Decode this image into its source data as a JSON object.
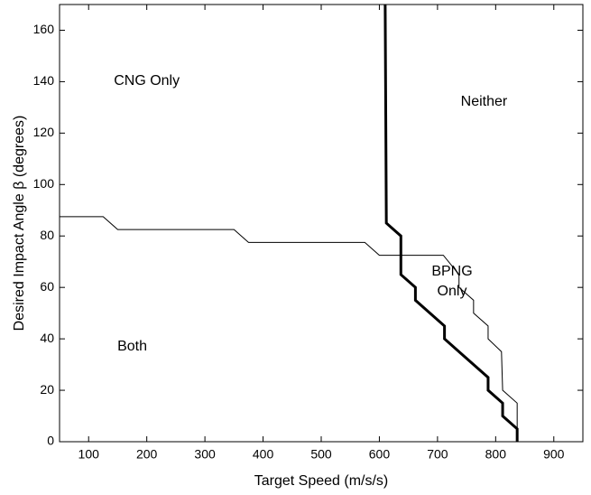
{
  "chart_data": {
    "type": "line",
    "x_label": "Target Speed (m/s/s)",
    "y_label": "Desired Impact Angle β  (degrees)",
    "xlim": [
      50,
      950
    ],
    "xticks": [
      100,
      200,
      300,
      400,
      500,
      600,
      700,
      800,
      900
    ],
    "ylim": [
      0,
      170
    ],
    "yticks": [
      0,
      20,
      40,
      60,
      80,
      100,
      120,
      140,
      160
    ],
    "grid": false,
    "series": [
      {
        "color": "#000000",
        "width": 1,
        "x": [
          50,
          125,
          150,
          350,
          375,
          575,
          600,
          710,
          737,
          737,
          762,
          762,
          787,
          787,
          810,
          812,
          837,
          837
        ],
        "values": [
          87.5,
          87.5,
          82.5,
          82.5,
          77.5,
          77.5,
          72.5,
          72.5,
          65,
          60,
          55,
          50,
          45,
          40,
          35,
          20,
          15,
          0
        ]
      },
      {
        "color": "#000000",
        "width": 3,
        "x": [
          610,
          612,
          637,
          637,
          662,
          662,
          712,
          712,
          787,
          787,
          812,
          812,
          837,
          837
        ],
        "values": [
          170,
          85,
          80,
          65,
          60,
          55,
          45,
          40,
          25,
          20,
          15,
          10,
          5,
          0
        ]
      }
    ],
    "annotations": [
      {
        "text": "CNG Only",
        "x": 200,
        "y": 140
      },
      {
        "text": "Neither",
        "x": 780,
        "y": 132
      },
      {
        "text": "BPNG Only",
        "x": 725,
        "y": 62
      },
      {
        "text": "Both",
        "x": 175,
        "y": 37
      }
    ]
  }
}
